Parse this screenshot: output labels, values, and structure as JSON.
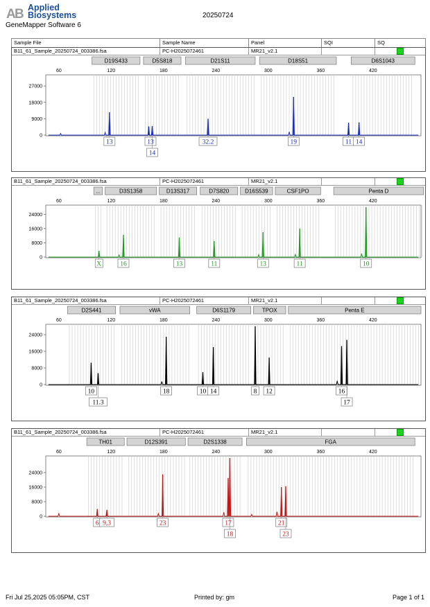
{
  "header": {
    "brand_line1": "Applied",
    "brand_line2": "Biosystems",
    "software": "GeneMapper Software 6",
    "date": "20250724"
  },
  "columns": {
    "sample_file": "Sample File",
    "sample_name": "Sample Name",
    "panel": "Panel",
    "sqi": "SQI",
    "sq": "SQ"
  },
  "footer": {
    "left": "Fri Jul 25,2025 05:05PM, CST",
    "center": "Printed by: gm",
    "right": "Page 1 of 1"
  },
  "colors": {
    "blue": "#1a2bb5",
    "green": "#1f9a1f",
    "black": "#000000",
    "red": "#c01818",
    "quality_ok": "#1fd01f"
  },
  "panels": [
    {
      "file": "B11_61_Sample_20250724_003386.fsa",
      "name": "PC-H2025072461",
      "panel": "MR21_v2.1",
      "color": "#1a2bb5",
      "markers": [
        {
          "label": "D19S433",
          "start": 98,
          "end": 153
        },
        {
          "label": "D5S818",
          "start": 157,
          "end": 200
        },
        {
          "label": "D21S11",
          "start": 205,
          "end": 285
        },
        {
          "label": "D18S51",
          "start": 290,
          "end": 378
        },
        {
          "label": "D6S1043",
          "start": 395,
          "end": 468
        }
      ],
      "yticks": [
        0,
        9000,
        18000,
        27000
      ],
      "ymax": 32000,
      "peaks": [
        {
          "size": 118,
          "height": 12500
        },
        {
          "size": 163,
          "height": 4800
        },
        {
          "size": 167,
          "height": 5000
        },
        {
          "size": 231,
          "height": 9000
        },
        {
          "size": 329,
          "height": 21000
        },
        {
          "size": 392,
          "height": 6800
        },
        {
          "size": 404,
          "height": 7000
        }
      ],
      "noise": [
        {
          "size": 62,
          "height": 900
        },
        {
          "size": 113,
          "height": 1500
        },
        {
          "size": 324,
          "height": 1800
        }
      ],
      "alleles": [
        {
          "label": "13",
          "size": 118,
          "row": 0
        },
        {
          "label": "13",
          "size": 165,
          "row": 0
        },
        {
          "label": "14",
          "size": 167,
          "row": 1
        },
        {
          "label": "32.2",
          "size": 231,
          "row": 0
        },
        {
          "label": "19",
          "size": 329,
          "row": 0
        },
        {
          "label": "11",
          "size": 392,
          "row": 0
        },
        {
          "label": "14",
          "size": 404,
          "row": 0
        }
      ]
    },
    {
      "file": "B11_61_Sample_20250724_003386.fsa",
      "name": "PC-H2025072461",
      "panel": "MR21_v2.1",
      "color": "#1f9a1f",
      "markers": [
        {
          "label": "...",
          "start": 100,
          "end": 110
        },
        {
          "label": "D3S1358",
          "start": 113,
          "end": 172
        },
        {
          "label": "D13S317",
          "start": 175,
          "end": 218
        },
        {
          "label": "D7S820",
          "start": 222,
          "end": 265
        },
        {
          "label": "D16S539",
          "start": 268,
          "end": 305
        },
        {
          "label": "CSF1PO",
          "start": 308,
          "end": 360
        },
        {
          "label": "Penta D",
          "start": 375,
          "end": 478
        }
      ],
      "yticks": [
        0,
        8000,
        16000,
        24000
      ],
      "ymax": 28000,
      "peaks": [
        {
          "size": 106,
          "height": 3500
        },
        {
          "size": 134,
          "height": 12500
        },
        {
          "size": 198,
          "height": 11000
        },
        {
          "size": 238,
          "height": 9000
        },
        {
          "size": 294,
          "height": 14000
        },
        {
          "size": 336,
          "height": 16000
        },
        {
          "size": 412,
          "height": 28000
        }
      ],
      "noise": [
        {
          "size": 129,
          "height": 1200
        },
        {
          "size": 289,
          "height": 1400
        },
        {
          "size": 331,
          "height": 1500
        },
        {
          "size": 407,
          "height": 2000
        }
      ],
      "alleles": [
        {
          "label": "X",
          "size": 106,
          "row": 0
        },
        {
          "label": "16",
          "size": 134,
          "row": 0
        },
        {
          "label": "13",
          "size": 198,
          "row": 0
        },
        {
          "label": "11",
          "size": 238,
          "row": 0
        },
        {
          "label": "13",
          "size": 294,
          "row": 0
        },
        {
          "label": "11",
          "size": 336,
          "row": 0
        },
        {
          "label": "10",
          "size": 412,
          "row": 0
        }
      ]
    },
    {
      "file": "B11_61_Sample_20250724_003386.fsa",
      "name": "PC-H2025072461",
      "panel": "MR21_v2.1",
      "color": "#000000",
      "markers": [
        {
          "label": "D2S441",
          "start": 70,
          "end": 125
        },
        {
          "label": "vWA",
          "start": 130,
          "end": 210
        },
        {
          "label": "D6S1179",
          "start": 218,
          "end": 280
        },
        {
          "label": "TPOX",
          "start": 283,
          "end": 320
        },
        {
          "label": "Penta E",
          "start": 323,
          "end": 475
        }
      ],
      "yticks": [
        0,
        8000,
        16000,
        24000
      ],
      "ymax": 28000,
      "peaks": [
        {
          "size": 97,
          "height": 10500
        },
        {
          "size": 105,
          "height": 5500
        },
        {
          "size": 183,
          "height": 23000
        },
        {
          "size": 225,
          "height": 6000
        },
        {
          "size": 237,
          "height": 18000
        },
        {
          "size": 285,
          "height": 28000
        },
        {
          "size": 301,
          "height": 13000
        },
        {
          "size": 384,
          "height": 18500
        },
        {
          "size": 390,
          "height": 21500
        }
      ],
      "noise": [
        {
          "size": 178,
          "height": 1500
        },
        {
          "size": 379,
          "height": 1800
        }
      ],
      "alleles": [
        {
          "label": "10",
          "size": 97,
          "row": 0
        },
        {
          "label": "11.3",
          "size": 105,
          "row": 1
        },
        {
          "label": "18",
          "size": 183,
          "row": 0
        },
        {
          "label": "10",
          "size": 225,
          "row": 0
        },
        {
          "label": "14",
          "size": 237,
          "row": 0
        },
        {
          "label": "8",
          "size": 285,
          "row": 0
        },
        {
          "label": "12",
          "size": 301,
          "row": 0
        },
        {
          "label": "16",
          "size": 384,
          "row": 0
        },
        {
          "label": "17",
          "size": 390,
          "row": 1
        }
      ]
    },
    {
      "file": "B11_61_Sample_20250724_003386.fsa",
      "name": "PC-H2025072461",
      "panel": "MR21_v2.1",
      "color": "#c01818",
      "markers": [
        {
          "label": "TH01",
          "start": 92,
          "end": 135
        },
        {
          "label": "D12S391",
          "start": 138,
          "end": 205
        },
        {
          "label": "D2S1338",
          "start": 208,
          "end": 270
        },
        {
          "label": "FGA",
          "start": 275,
          "end": 468
        }
      ],
      "yticks": [
        0,
        8000,
        16000,
        24000
      ],
      "ymax": 32000,
      "peaks": [
        {
          "size": 104,
          "height": 4000
        },
        {
          "size": 115,
          "height": 3500
        },
        {
          "size": 179,
          "height": 23000
        },
        {
          "size": 254,
          "height": 21000
        },
        {
          "size": 256,
          "height": 32000
        },
        {
          "size": 315,
          "height": 16000
        },
        {
          "size": 320,
          "height": 16500
        }
      ],
      "noise": [
        {
          "size": 60,
          "height": 1500
        },
        {
          "size": 174,
          "height": 1500
        },
        {
          "size": 249,
          "height": 2200
        },
        {
          "size": 281,
          "height": 1000
        },
        {
          "size": 310,
          "height": 2500
        }
      ],
      "alleles": [
        {
          "label": "6",
          "size": 104,
          "row": 0
        },
        {
          "label": "9,3",
          "size": 115,
          "row": 0
        },
        {
          "label": "23",
          "size": 179,
          "row": 0
        },
        {
          "label": "17",
          "size": 254,
          "row": 0
        },
        {
          "label": "18",
          "size": 256,
          "row": 1
        },
        {
          "label": "21",
          "size": 315,
          "row": 0
        },
        {
          "label": "23",
          "size": 320,
          "row": 1
        }
      ]
    }
  ],
  "chart_data": {
    "type": "line",
    "xlim": [
      45,
      475
    ],
    "xticks": [
      60,
      120,
      180,
      240,
      300,
      360,
      420
    ],
    "xlabel": "",
    "ylabel": "",
    "grid": false,
    "series": [
      {
        "name": "",
        "color": "#1a2bb5",
        "x": [
          118,
          163,
          167,
          231,
          329,
          392,
          404
        ],
        "values": [
          12500,
          4800,
          5000,
          9000,
          21000,
          6800,
          7000
        ]
      },
      {
        "name": "",
        "color": "#1f9a1f",
        "x": [
          106,
          134,
          198,
          238,
          294,
          336,
          412
        ],
        "values": [
          3500,
          12500,
          11000,
          9000,
          14000,
          16000,
          28000
        ]
      },
      {
        "name": "",
        "color": "#000000",
        "x": [
          97,
          105,
          183,
          225,
          237,
          285,
          301,
          384,
          390
        ],
        "values": [
          10500,
          5500,
          23000,
          6000,
          18000,
          28000,
          13000,
          18500,
          21500
        ]
      },
      {
        "name": "",
        "color": "#c01818",
        "x": [
          104,
          115,
          179,
          254,
          256,
          315,
          320
        ],
        "values": [
          4000,
          3500,
          23000,
          21000,
          32000,
          16000,
          16500
        ]
      }
    ]
  }
}
